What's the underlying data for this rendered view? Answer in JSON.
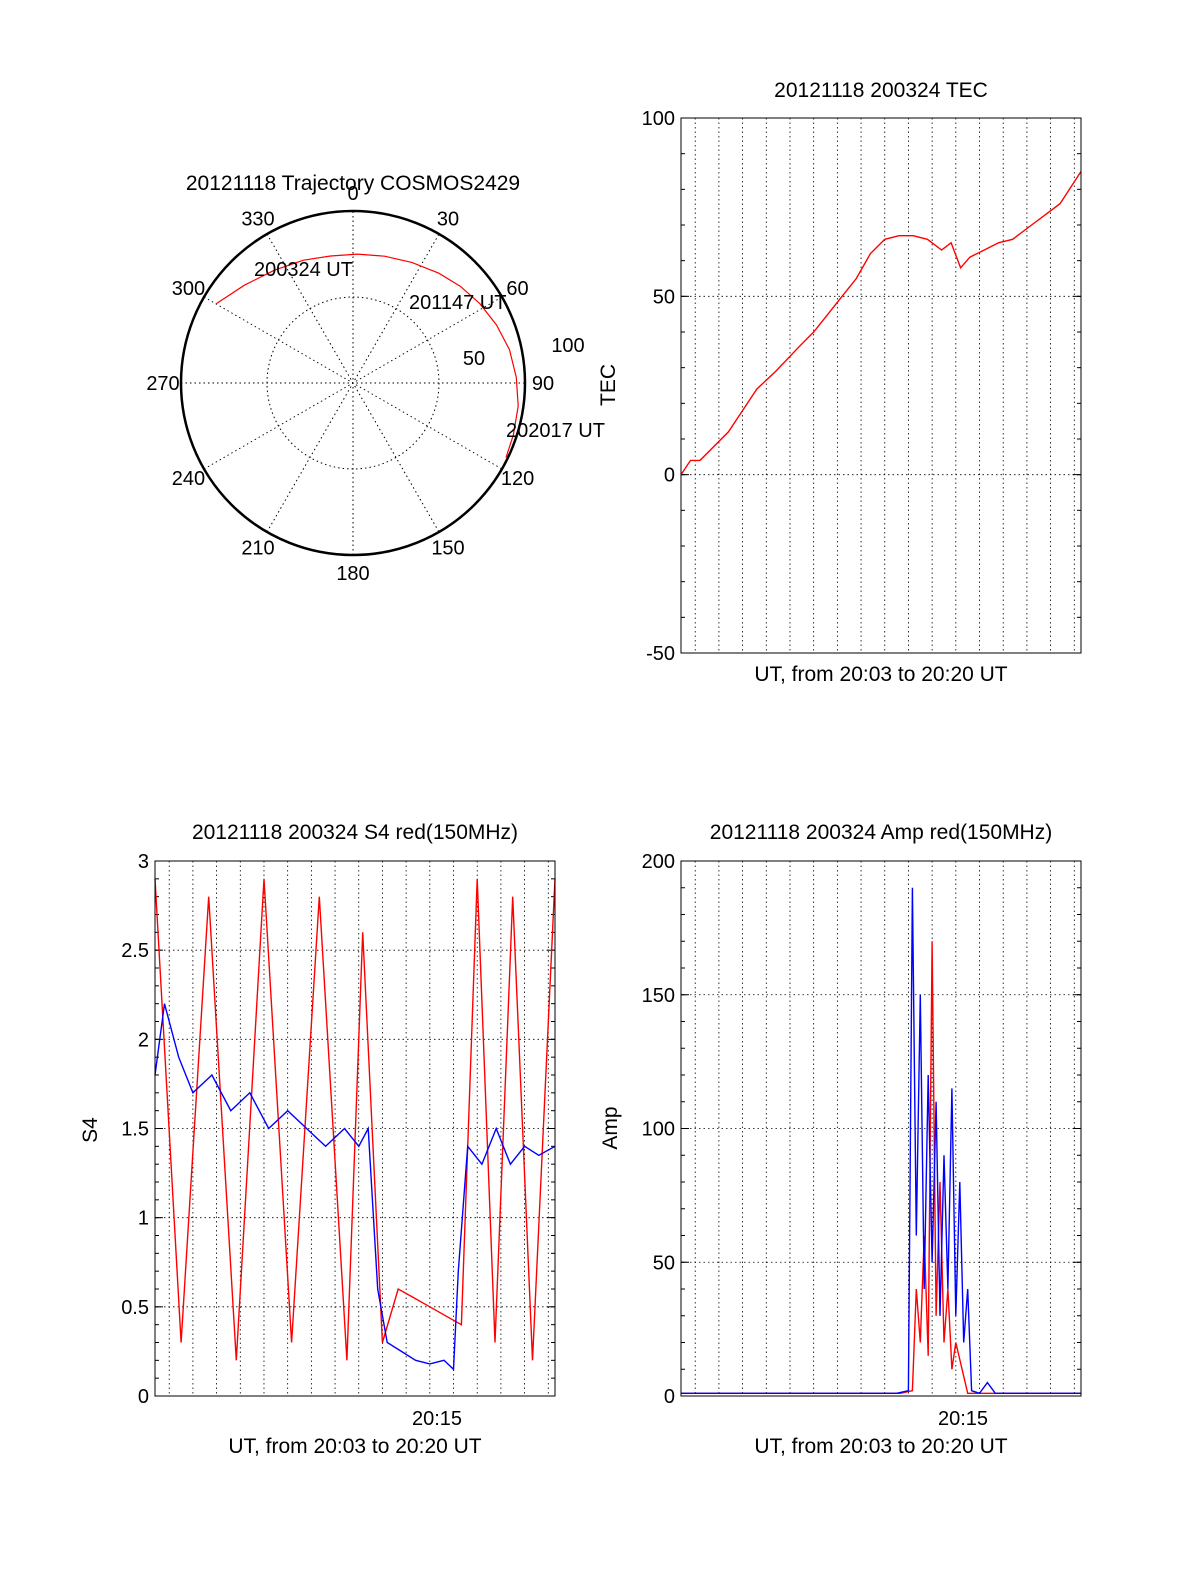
{
  "colors": {
    "red": "#ff0000",
    "blue": "#0000ff",
    "axis": "#000000",
    "grid": "#000000"
  },
  "chart_data": [
    {
      "id": "trajectory",
      "type": "polar",
      "title": "20121118 Trajectory COSMOS2429",
      "radial_label": "TEC",
      "azimuth_labels": [
        "0",
        "30",
        "60",
        "90",
        "120",
        "150",
        "180",
        "210",
        "240",
        "270",
        "300",
        "330"
      ],
      "radial_labels": [
        "50",
        "100"
      ],
      "rlim": [
        0,
        100
      ],
      "trajectory": {
        "azimuth_deg": [
          300,
          312,
          325,
          338,
          350,
          2,
          14,
          26,
          38,
          48,
          58,
          68,
          78,
          88,
          98,
          108,
          116
        ],
        "radius": [
          92,
          85,
          80,
          77,
          75,
          75,
          76,
          78,
          81,
          84,
          87,
          90,
          93,
          95,
          97,
          98,
          99
        ],
        "color": "red"
      },
      "annotations": [
        {
          "text": "200324 UT",
          "azimuth_deg": 300,
          "radius": 92
        },
        {
          "text": "201147 UT",
          "azimuth_deg": 48,
          "radius": 84
        },
        {
          "text": "202017 UT",
          "azimuth_deg": 116,
          "radius": 99
        }
      ]
    },
    {
      "id": "tec",
      "type": "line",
      "title": "20121118 200324 TEC",
      "xlabel": "UT, from 20:03 to 20:20 UT",
      "ylabel": "TEC",
      "xlim": [
        "20:03:24",
        "20:20:17"
      ],
      "ylim": [
        -50,
        100
      ],
      "yticks": [
        "100",
        "50",
        "0",
        "-50"
      ],
      "grid": true,
      "series": [
        {
          "color": "red",
          "x": [
            "20:03:24",
            "20:03:48",
            "20:04:12",
            "20:04:48",
            "20:05:24",
            "20:06:00",
            "20:06:36",
            "20:07:24",
            "20:08:24",
            "20:09:00",
            "20:09:36",
            "20:10:12",
            "20:10:48",
            "20:11:24",
            "20:12:00",
            "20:12:36",
            "20:13:12",
            "20:13:48",
            "20:14:24",
            "20:14:48",
            "20:15:12",
            "20:15:36",
            "20:16:12",
            "20:16:48",
            "20:17:24",
            "20:18:12",
            "20:18:48",
            "20:19:24",
            "20:20:17"
          ],
          "y": [
            0,
            4,
            4,
            8,
            12,
            18,
            24,
            29,
            36,
            40,
            45,
            50,
            55,
            62,
            66,
            67,
            67,
            66,
            63,
            65,
            58,
            61,
            63,
            65,
            66,
            70,
            73,
            76,
            85
          ]
        }
      ]
    },
    {
      "id": "s4",
      "type": "line",
      "title": "20121118 200324 S4 red(150MHz)",
      "xlabel": "UT, from 20:03 to 20:20 UT",
      "ylabel": "S4",
      "xlim": [
        "20:03:24",
        "20:20:17"
      ],
      "xticks": [
        "20:15"
      ],
      "ylim": [
        0,
        3
      ],
      "yticks": [
        "3",
        "2.5",
        "2",
        "1.5",
        "1",
        "0.5",
        "0"
      ],
      "grid": true,
      "series": [
        {
          "color": "red",
          "x": [
            "20:03:24",
            "20:04:30",
            "20:05:40",
            "20:06:50",
            "20:08:00",
            "20:09:10",
            "20:10:20",
            "20:11:30",
            "20:12:10",
            "20:13:00",
            "20:13:40",
            "20:14:20",
            "20:15:00",
            "20:15:40",
            "20:16:20",
            "20:17:00",
            "20:17:45",
            "20:18:30",
            "20:19:20",
            "20:20:17"
          ],
          "y": [
            2.9,
            0.3,
            2.8,
            0.2,
            2.9,
            0.3,
            2.8,
            0.2,
            2.6,
            0.3,
            0.6,
            0.55,
            0.5,
            0.45,
            0.4,
            2.9,
            0.3,
            2.8,
            0.2,
            2.9
          ]
        },
        {
          "color": "blue",
          "x": [
            "20:03:24",
            "20:03:48",
            "20:04:24",
            "20:05:00",
            "20:05:48",
            "20:06:36",
            "20:07:24",
            "20:08:12",
            "20:09:00",
            "20:09:48",
            "20:10:36",
            "20:11:24",
            "20:12:00",
            "20:12:24",
            "20:12:48",
            "20:13:12",
            "20:13:48",
            "20:14:24",
            "20:15:00",
            "20:15:36",
            "20:16:00",
            "20:16:12",
            "20:16:36",
            "20:17:12",
            "20:17:48",
            "20:18:24",
            "20:19:00",
            "20:19:36",
            "20:20:17"
          ],
          "y": [
            1.8,
            2.2,
            1.9,
            1.7,
            1.8,
            1.6,
            1.7,
            1.5,
            1.6,
            1.5,
            1.4,
            1.5,
            1.4,
            1.5,
            0.6,
            0.3,
            0.25,
            0.2,
            0.18,
            0.2,
            0.15,
            0.7,
            1.4,
            1.3,
            1.5,
            1.3,
            1.4,
            1.35,
            1.4
          ]
        }
      ]
    },
    {
      "id": "amp",
      "type": "line",
      "title": "20121118 200324 Amp red(150MHz)",
      "xlabel": "UT, from 20:03 to 20:20 UT",
      "ylabel": "Amp",
      "xlim": [
        "20:03:24",
        "20:20:17"
      ],
      "xticks": [
        "20:15"
      ],
      "ylim": [
        0,
        200
      ],
      "yticks": [
        "200",
        "150",
        "100",
        "50",
        "0"
      ],
      "grid": true,
      "series": [
        {
          "color": "red",
          "x": [
            "20:03:24",
            "20:12:40",
            "20:13:10",
            "20:13:20",
            "20:13:30",
            "20:13:40",
            "20:13:50",
            "20:14:00",
            "20:14:10",
            "20:14:20",
            "20:14:30",
            "20:14:40",
            "20:14:50",
            "20:15:00",
            "20:15:30",
            "20:20:17"
          ],
          "y": [
            1,
            1,
            2,
            40,
            20,
            60,
            15,
            170,
            30,
            80,
            20,
            40,
            10,
            20,
            1,
            1
          ]
        },
        {
          "color": "blue",
          "x": [
            "20:03:24",
            "20:08:00",
            "20:12:30",
            "20:13:00",
            "20:13:10",
            "20:13:20",
            "20:13:30",
            "20:13:40",
            "20:13:50",
            "20:14:00",
            "20:14:10",
            "20:14:20",
            "20:14:30",
            "20:14:40",
            "20:14:50",
            "20:15:00",
            "20:15:10",
            "20:15:20",
            "20:15:30",
            "20:15:40",
            "20:16:00",
            "20:16:20",
            "20:16:40",
            "20:20:17"
          ],
          "y": [
            1,
            1,
            1,
            2,
            190,
            60,
            150,
            40,
            120,
            50,
            110,
            30,
            90,
            40,
            115,
            30,
            80,
            20,
            40,
            2,
            1,
            5,
            1,
            1
          ]
        }
      ]
    }
  ]
}
